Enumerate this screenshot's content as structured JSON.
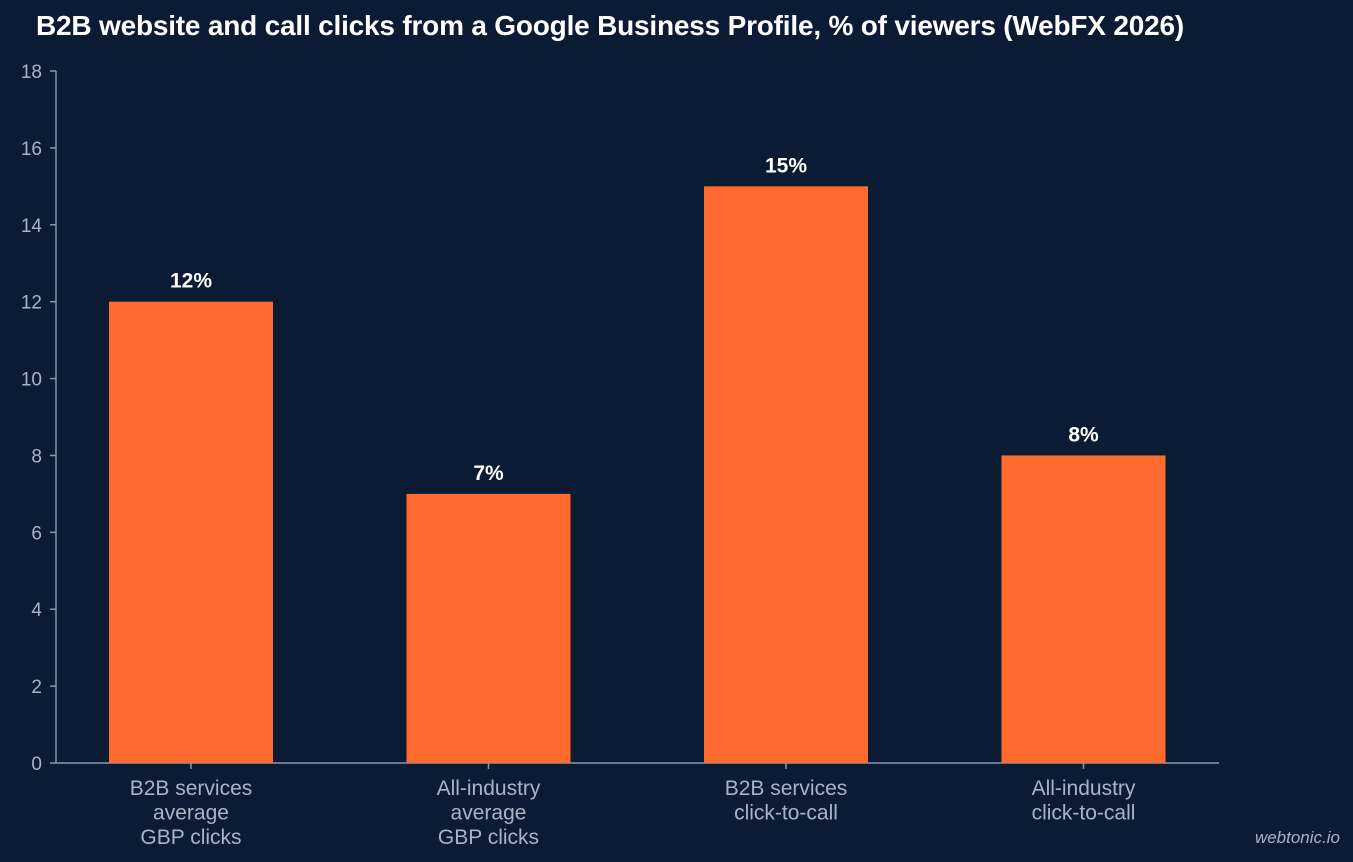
{
  "chart_data": {
    "type": "bar",
    "title": "B2B website and call clicks from a Google Business Profile, % of viewers (WebFX 2026)",
    "categories": [
      [
        "B2B services",
        "average",
        "GBP clicks"
      ],
      [
        "All-industry",
        "average",
        "GBP clicks"
      ],
      [
        "B2B services",
        "click-to-call"
      ],
      [
        "All-industry",
        "click-to-call"
      ]
    ],
    "values": [
      12,
      7,
      15,
      8
    ],
    "data_labels": [
      "12%",
      "7%",
      "15%",
      "8%"
    ],
    "xlabel": "",
    "ylabel": "",
    "ylim": [
      0,
      18
    ],
    "yticks": [
      0,
      2,
      4,
      6,
      8,
      10,
      12,
      14,
      16,
      18
    ],
    "grid": false,
    "legend": "none",
    "colors": {
      "background": "#0b1b34",
      "bar": "#ff6b2e",
      "axis": "#8a96ab",
      "tick_text": "#a9b3c4",
      "label_text": "#ffffff"
    }
  },
  "watermark": "webtonic.io"
}
